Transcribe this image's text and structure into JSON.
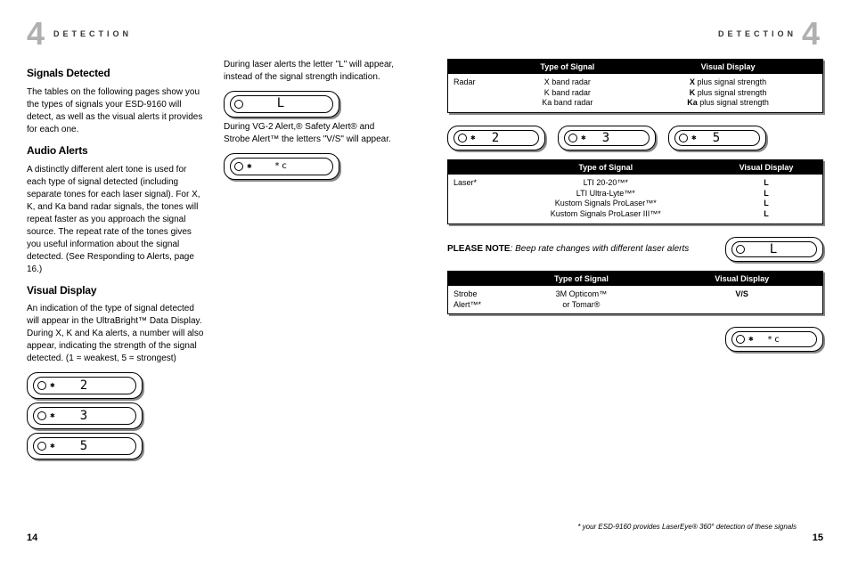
{
  "header": {
    "section": "DETECTION",
    "chapter": "4"
  },
  "left": {
    "signals_h": "Signals Detected",
    "signals_p": "The tables on the following pages show you the types of signals your ESD-9160 will detect, as well as the visual alerts it provides for each one.",
    "audio_h": "Audio Alerts",
    "audio_p": "A distinctly different alert tone is used for each type of signal detected (including separate tones for each laser signal). For X, K, and Ka band radar signals, the tones will repeat faster as you approach the signal source. The repeat rate of the tones gives you useful information about the signal detected. (See Responding to Alerts, page 16.)",
    "visual_h": "Visual Display",
    "visual_p": "An indication of the type of signal detected will appear in the UltraBright™ Data Display. During X, K and Ka alerts, a number will also appear, indicating the strength of the signal detected. (1 = weakest, 5 = strongest)",
    "laser_p": "During laser alerts the letter \"L\" will appear, instead of the signal strength indication.",
    "vg2_p": "During VG-2 Alert,® Safety Alert® and Strobe Alert™ the letters \"V/S\" will appear.",
    "disp": {
      "d1": "2",
      "d2": "3",
      "d3": "5",
      "dL": "L",
      "dVS": "*c"
    }
  },
  "right": {
    "t1": {
      "h_empty": "",
      "h_type": "Type of Signal",
      "h_vis": "Visual Display",
      "c1": "Radar",
      "c2": "X band radar\nK band radar\nKa band radar",
      "c3": "X plus signal strength\nK plus signal strength\nKa plus signal strength"
    },
    "row_disp": {
      "d1": "2",
      "d2": "3",
      "d3": "5"
    },
    "t2": {
      "h_empty": "",
      "h_type": "Type of Signal",
      "h_vis": "Visual Display",
      "c1": "Laser*",
      "c2": "LTI 20-20™*\nLTI Ultra-Lyte™*\nKustom Signals ProLaser™*\nKustom Signals ProLaser III™*",
      "c3": "L\nL\nL\nL"
    },
    "note": "PLEASE NOTE",
    "note_txt": ": Beep rate changes with different laser alerts",
    "dL": "L",
    "t3": {
      "h_empty": "",
      "h_type": "Type of Signal",
      "h_vis": "Visual Display",
      "c1": "Strobe Alert™*",
      "c2": "3M Opticom™\nor Tomar®",
      "c3": "V/S"
    },
    "dVS": "*c",
    "footnote": "* your ESD-9160 provides LaserEye® 360° detection of these signals"
  },
  "pgL": "14",
  "pgR": "15"
}
